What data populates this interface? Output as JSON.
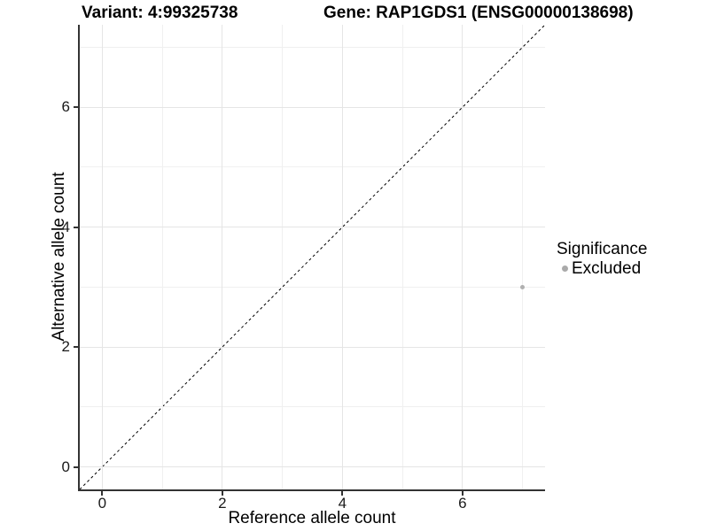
{
  "chart_data": {
    "type": "scatter",
    "title_left": "Variant: 4:99325738",
    "title_right": "Gene: RAP1GDS1 (ENSG00000138698)",
    "xlabel": "Reference allele count",
    "ylabel": "Alternative allele count",
    "xlim": [
      -0.375,
      7.375
    ],
    "ylim": [
      -0.375,
      7.375
    ],
    "x_ticks": {
      "values": [
        0,
        2,
        4,
        6
      ],
      "labels": [
        "0",
        "2",
        "4",
        "6"
      ]
    },
    "y_ticks": {
      "values": [
        0,
        2,
        4,
        6
      ],
      "labels": [
        "0",
        "2",
        "4",
        "6"
      ]
    },
    "x_minor_gridlines": [
      1,
      3,
      5,
      7
    ],
    "y_minor_gridlines": [
      1,
      3,
      5,
      7
    ],
    "grid": "on",
    "points": [
      {
        "x": 7,
        "y": 3,
        "series": "Excluded"
      }
    ],
    "reference_line": {
      "kind": "identity",
      "slope": 1,
      "intercept": 0,
      "style": "dashed"
    },
    "legend": {
      "position": "right",
      "title": "Significance",
      "items": [
        {
          "label": "Excluded",
          "color": "#aaaaaa"
        }
      ]
    },
    "colors": {
      "point": "#b0b0b0",
      "major_gridline": "#e5e5e5",
      "minor_gridline": "#f0f0f0",
      "axis_line": "#333333",
      "reference_line": "#000000",
      "text": "#000000"
    }
  }
}
